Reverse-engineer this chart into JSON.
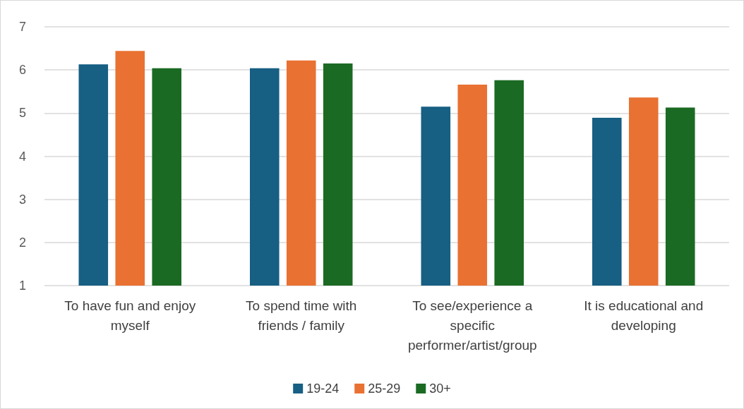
{
  "chart_data": {
    "type": "bar",
    "categories": [
      "To have fun and enjoy myself",
      "To spend time with friends / family",
      "To see/experience a specific performer/artist/group",
      "It is educational and developing"
    ],
    "series": [
      {
        "name": "19-24",
        "color": "#175f83",
        "values": [
          6.13,
          6.04,
          5.15,
          4.89
        ]
      },
      {
        "name": "25-29",
        "color": "#e97132",
        "values": [
          6.44,
          6.22,
          5.66,
          5.36
        ]
      },
      {
        "name": "30+",
        "color": "#1b6a23",
        "values": [
          6.04,
          6.15,
          5.76,
          5.13
        ]
      }
    ],
    "ylim": [
      1,
      7
    ],
    "yticks": [
      1,
      2,
      3,
      4,
      5,
      6,
      7
    ],
    "grid": "y",
    "legend": "bottom"
  }
}
